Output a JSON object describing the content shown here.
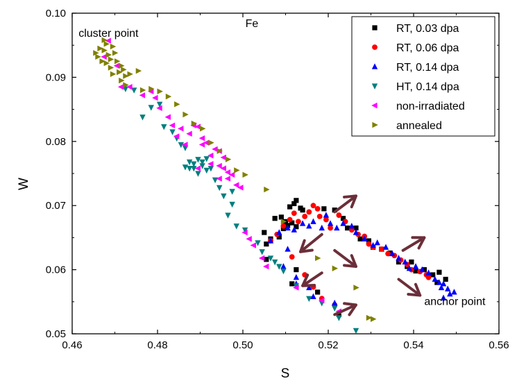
{
  "chart_data": {
    "type": "scatter",
    "title": "Fe",
    "xlabel": "S",
    "ylabel": "W",
    "xlim": [
      0.46,
      0.56
    ],
    "ylim": [
      0.05,
      0.1
    ],
    "x_ticks": [
      "0.46",
      "0.48",
      "0.50",
      "0.52",
      "0.54",
      "0.56"
    ],
    "y_ticks": [
      "0.05",
      "0.06",
      "0.07",
      "0.08",
      "0.09",
      "0.10"
    ],
    "grid": false,
    "legend_position": "top-right",
    "annotations": [
      {
        "text": "cluster point",
        "x": 0.4615,
        "y": 0.0963
      },
      {
        "text": "anchor point",
        "x": 0.5425,
        "y": 0.0545
      }
    ],
    "arrow_color": "#6b2f3a",
    "arrows": [
      {
        "x1": 0.5185,
        "y1": 0.0655,
        "x2": 0.5135,
        "y2": 0.0628
      },
      {
        "x1": 0.5215,
        "y1": 0.069,
        "x2": 0.5265,
        "y2": 0.0715
      },
      {
        "x1": 0.5215,
        "y1": 0.063,
        "x2": 0.5265,
        "y2": 0.0605
      },
      {
        "x1": 0.5375,
        "y1": 0.063,
        "x2": 0.5425,
        "y2": 0.065
      },
      {
        "x1": 0.5365,
        "y1": 0.0585,
        "x2": 0.5415,
        "y2": 0.056
      },
      {
        "x1": 0.5185,
        "y1": 0.0595,
        "x2": 0.514,
        "y2": 0.0575
      },
      {
        "x1": 0.5215,
        "y1": 0.053,
        "x2": 0.5265,
        "y2": 0.0545
      }
    ],
    "series": [
      {
        "name": "RT, 0.03 dpa",
        "marker": "square",
        "color": "#000000",
        "points": [
          [
            0.505,
            0.0658
          ],
          [
            0.5055,
            0.064
          ],
          [
            0.5075,
            0.068
          ],
          [
            0.509,
            0.0682
          ],
          [
            0.51,
            0.0675
          ],
          [
            0.511,
            0.0698
          ],
          [
            0.512,
            0.0703
          ],
          [
            0.5125,
            0.0708
          ],
          [
            0.5135,
            0.0696
          ],
          [
            0.514,
            0.0693
          ],
          [
            0.5085,
            0.0651
          ],
          [
            0.5095,
            0.0664
          ],
          [
            0.5105,
            0.0669
          ],
          [
            0.5115,
            0.0673
          ],
          [
            0.5125,
            0.0667
          ],
          [
            0.5065,
            0.0648
          ],
          [
            0.5055,
            0.0616
          ],
          [
            0.5115,
            0.0578
          ],
          [
            0.5125,
            0.06
          ],
          [
            0.5175,
            0.0565
          ],
          [
            0.5225,
            0.053
          ],
          [
            0.519,
            0.0695
          ],
          [
            0.5215,
            0.0693
          ],
          [
            0.5235,
            0.068
          ],
          [
            0.5245,
            0.0665
          ],
          [
            0.5265,
            0.0665
          ],
          [
            0.5275,
            0.0648
          ],
          [
            0.5295,
            0.0645
          ],
          [
            0.5305,
            0.0635
          ],
          [
            0.5325,
            0.0632
          ],
          [
            0.5345,
            0.0626
          ],
          [
            0.5365,
            0.0612
          ],
          [
            0.5385,
            0.0605
          ],
          [
            0.5405,
            0.0598
          ],
          [
            0.5425,
            0.06
          ],
          [
            0.5445,
            0.0592
          ],
          [
            0.5455,
            0.058
          ],
          [
            0.546,
            0.0596
          ],
          [
            0.5475,
            0.0585
          ],
          [
            0.5395,
            0.0612
          ]
        ]
      },
      {
        "name": "RT, 0.06 dpa",
        "marker": "circle",
        "color": "#ff0000",
        "points": [
          [
            0.5065,
            0.0645
          ],
          [
            0.508,
            0.0655
          ],
          [
            0.5095,
            0.0668
          ],
          [
            0.511,
            0.0678
          ],
          [
            0.512,
            0.0688
          ],
          [
            0.513,
            0.0675
          ],
          [
            0.5145,
            0.0683
          ],
          [
            0.5155,
            0.069
          ],
          [
            0.5165,
            0.07
          ],
          [
            0.5175,
            0.0695
          ],
          [
            0.518,
            0.0683
          ],
          [
            0.5195,
            0.0678
          ],
          [
            0.5205,
            0.0665
          ],
          [
            0.5225,
            0.0685
          ],
          [
            0.524,
            0.0675
          ],
          [
            0.5255,
            0.0662
          ],
          [
            0.527,
            0.0655
          ],
          [
            0.5285,
            0.0652
          ],
          [
            0.5295,
            0.064
          ],
          [
            0.5305,
            0.0635
          ],
          [
            0.5325,
            0.0632
          ],
          [
            0.534,
            0.0625
          ],
          [
            0.5355,
            0.0622
          ],
          [
            0.537,
            0.0615
          ],
          [
            0.5385,
            0.0608
          ],
          [
            0.5395,
            0.06
          ],
          [
            0.5415,
            0.0597
          ],
          [
            0.543,
            0.0592
          ],
          [
            0.5435,
            0.0588
          ],
          [
            0.5115,
            0.062
          ],
          [
            0.5145,
            0.0592
          ],
          [
            0.5165,
            0.0573
          ],
          [
            0.5185,
            0.0555
          ],
          [
            0.5215,
            0.0545
          ]
        ]
      },
      {
        "name": "RT, 0.14 dpa",
        "marker": "triangle-up",
        "color": "#0000ff",
        "points": [
          [
            0.5065,
            0.0645
          ],
          [
            0.5085,
            0.0658
          ],
          [
            0.5105,
            0.0665
          ],
          [
            0.512,
            0.0662
          ],
          [
            0.514,
            0.0672
          ],
          [
            0.5155,
            0.0668
          ],
          [
            0.5165,
            0.0675
          ],
          [
            0.5185,
            0.0665
          ],
          [
            0.5195,
            0.0685
          ],
          [
            0.5205,
            0.0672
          ],
          [
            0.522,
            0.0665
          ],
          [
            0.5235,
            0.0672
          ],
          [
            0.5255,
            0.0668
          ],
          [
            0.5265,
            0.0658
          ],
          [
            0.5285,
            0.0648
          ],
          [
            0.5305,
            0.0638
          ],
          [
            0.5315,
            0.0642
          ],
          [
            0.5335,
            0.0635
          ],
          [
            0.535,
            0.0625
          ],
          [
            0.5365,
            0.0618
          ],
          [
            0.538,
            0.0612
          ],
          [
            0.539,
            0.0602
          ],
          [
            0.5405,
            0.0605
          ],
          [
            0.542,
            0.06
          ],
          [
            0.5435,
            0.0595
          ],
          [
            0.545,
            0.0585
          ],
          [
            0.546,
            0.058
          ],
          [
            0.547,
            0.0578
          ],
          [
            0.548,
            0.057
          ],
          [
            0.5485,
            0.0562
          ],
          [
            0.5495,
            0.0565
          ],
          [
            0.547,
            0.0556
          ],
          [
            0.5465,
            0.0572
          ],
          [
            0.5105,
            0.0632
          ],
          [
            0.5095,
            0.0605
          ],
          [
            0.5125,
            0.0588
          ],
          [
            0.5155,
            0.0572
          ],
          [
            0.5165,
            0.0558
          ],
          [
            0.5215,
            0.0548
          ],
          [
            0.5125,
            0.0578
          ]
        ]
      },
      {
        "name": "HT, 0.14 dpa",
        "marker": "triangle-down",
        "color": "#007f7f",
        "points": [
          [
            0.4725,
            0.0882
          ],
          [
            0.4745,
            0.088
          ],
          [
            0.4785,
            0.0853
          ],
          [
            0.4805,
            0.0858
          ],
          [
            0.4765,
            0.0838
          ],
          [
            0.4815,
            0.0823
          ],
          [
            0.4835,
            0.0815
          ],
          [
            0.4845,
            0.0805
          ],
          [
            0.4855,
            0.0795
          ],
          [
            0.4865,
            0.079
          ],
          [
            0.4875,
            0.0768
          ],
          [
            0.4885,
            0.0765
          ],
          [
            0.4895,
            0.0772
          ],
          [
            0.4905,
            0.0762
          ],
          [
            0.4915,
            0.0755
          ],
          [
            0.4865,
            0.076
          ],
          [
            0.4875,
            0.0758
          ],
          [
            0.4885,
            0.0758
          ],
          [
            0.4895,
            0.075
          ],
          [
            0.4905,
            0.0768
          ],
          [
            0.4915,
            0.0773
          ],
          [
            0.4925,
            0.0758
          ],
          [
            0.4935,
            0.074
          ],
          [
            0.4945,
            0.0728
          ],
          [
            0.4955,
            0.0715
          ],
          [
            0.4975,
            0.0702
          ],
          [
            0.4965,
            0.0685
          ],
          [
            0.4985,
            0.0668
          ],
          [
            0.5005,
            0.0662
          ],
          [
            0.5035,
            0.0642
          ],
          [
            0.5045,
            0.0628
          ],
          [
            0.5065,
            0.0618
          ],
          [
            0.5085,
            0.0605
          ],
          [
            0.5095,
            0.0598
          ],
          [
            0.5075,
            0.0612
          ],
          [
            0.5125,
            0.0575
          ],
          [
            0.5155,
            0.0555
          ],
          [
            0.5185,
            0.0548
          ],
          [
            0.5215,
            0.054
          ],
          [
            0.5225,
            0.0525
          ],
          [
            0.5265,
            0.0505
          ],
          [
            0.4975,
            0.0722
          ]
        ]
      },
      {
        "name": "non-irradiated",
        "marker": "triangle-left",
        "color": "#ff00ff",
        "points": [
          [
            0.4685,
            0.0957
          ],
          [
            0.4675,
            0.0932
          ],
          [
            0.4705,
            0.0918
          ],
          [
            0.4715,
            0.0885
          ],
          [
            0.4735,
            0.0885
          ],
          [
            0.4765,
            0.0872
          ],
          [
            0.4785,
            0.0878
          ],
          [
            0.4795,
            0.0868
          ],
          [
            0.4805,
            0.0852
          ],
          [
            0.4825,
            0.0838
          ],
          [
            0.4835,
            0.0825
          ],
          [
            0.4845,
            0.0808
          ],
          [
            0.4855,
            0.082
          ],
          [
            0.4865,
            0.0795
          ],
          [
            0.4875,
            0.0812
          ],
          [
            0.4885,
            0.0825
          ],
          [
            0.4895,
            0.0823
          ],
          [
            0.4905,
            0.0805
          ],
          [
            0.4915,
            0.0798
          ],
          [
            0.4925,
            0.0778
          ],
          [
            0.4935,
            0.0788
          ],
          [
            0.4945,
            0.0762
          ],
          [
            0.4955,
            0.0758
          ],
          [
            0.4965,
            0.0742
          ],
          [
            0.4975,
            0.0748
          ],
          [
            0.4985,
            0.0732
          ],
          [
            0.4995,
            0.0728
          ],
          [
            0.4905,
            0.0795
          ],
          [
            0.4925,
            0.0765
          ],
          [
            0.4945,
            0.0785
          ],
          [
            0.4955,
            0.0775
          ],
          [
            0.4965,
            0.0752
          ],
          [
            0.4945,
            0.0742
          ],
          [
            0.5005,
            0.0658
          ],
          [
            0.5015,
            0.0648
          ],
          [
            0.5025,
            0.0638
          ],
          [
            0.5045,
            0.0618
          ],
          [
            0.5055,
            0.0605
          ],
          [
            0.5125,
            0.0572
          ],
          [
            0.5185,
            0.0552
          ],
          [
            0.5225,
            0.0535
          ],
          [
            0.4895,
            0.0758
          ]
        ]
      },
      {
        "name": "annealed",
        "marker": "triangle-right",
        "color": "#808000",
        "points": [
          [
            0.4655,
            0.0938
          ],
          [
            0.466,
            0.0932
          ],
          [
            0.4665,
            0.0945
          ],
          [
            0.467,
            0.0925
          ],
          [
            0.4675,
            0.0942
          ],
          [
            0.468,
            0.0952
          ],
          [
            0.4685,
            0.0935
          ],
          [
            0.469,
            0.0928
          ],
          [
            0.4695,
            0.0948
          ],
          [
            0.47,
            0.0938
          ],
          [
            0.4705,
            0.0925
          ],
          [
            0.471,
            0.0908
          ],
          [
            0.4715,
            0.0918
          ],
          [
            0.472,
            0.0912
          ],
          [
            0.4725,
            0.0902
          ],
          [
            0.468,
            0.0922
          ],
          [
            0.469,
            0.0915
          ],
          [
            0.4695,
            0.0905
          ],
          [
            0.4715,
            0.0895
          ],
          [
            0.4735,
            0.0905
          ],
          [
            0.4755,
            0.091
          ],
          [
            0.4765,
            0.088
          ],
          [
            0.4785,
            0.0882
          ],
          [
            0.4805,
            0.0878
          ],
          [
            0.4825,
            0.087
          ],
          [
            0.4845,
            0.0858
          ],
          [
            0.4865,
            0.0842
          ],
          [
            0.4885,
            0.0828
          ],
          [
            0.4905,
            0.082
          ],
          [
            0.4925,
            0.0798
          ],
          [
            0.4945,
            0.0785
          ],
          [
            0.4965,
            0.0772
          ],
          [
            0.4985,
            0.0755
          ],
          [
            0.5005,
            0.0748
          ],
          [
            0.5055,
            0.0725
          ],
          [
            0.5095,
            0.0675
          ],
          [
            0.5175,
            0.0618
          ],
          [
            0.5215,
            0.0602
          ],
          [
            0.5265,
            0.0572
          ],
          [
            0.5295,
            0.0525
          ],
          [
            0.5305,
            0.0523
          ],
          [
            0.4675,
            0.0958
          ],
          [
            0.4725,
            0.0888
          ]
        ]
      }
    ]
  }
}
